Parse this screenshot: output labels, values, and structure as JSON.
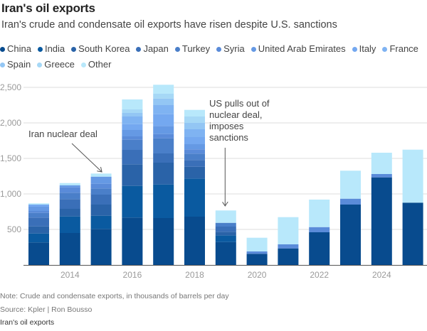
{
  "title": "Iran's oil exports",
  "subtitle": "Iran's crude and condensate oil exports have risen despite U.S. sanctions",
  "note": "Note: Crude and condensate exports, in thousands of barrels per day",
  "source": "Source: Kpler | Ron Bousso",
  "footer_title": "Iran's oil exports",
  "chart_data": {
    "type": "bar",
    "stacked": true,
    "title": "Iran's oil exports",
    "xlabel": "",
    "ylabel": "",
    "units": "thousands of barrels per day",
    "ylim": [
      0,
      2500
    ],
    "yticks": [
      500,
      1000,
      1500,
      2000,
      2500
    ],
    "ytick_labels": [
      "500",
      "1,000",
      "1,500",
      "2,000",
      "2,500"
    ],
    "grid": true,
    "legend_position": "top",
    "categories": [
      "2013",
      "2014",
      "2015",
      "2016",
      "2017",
      "2018",
      "2019",
      "2020",
      "2021",
      "2022",
      "2023",
      "2024",
      "2025"
    ],
    "xtick_labels": [
      "2014",
      "2016",
      "2018",
      "2020",
      "2022",
      "2024"
    ],
    "series": [
      {
        "name": "China",
        "color": "#084b8e",
        "values": [
          317,
          450,
          507,
          667,
          660,
          680,
          323,
          157,
          233,
          460,
          850,
          1233,
          877
        ]
      },
      {
        "name": "India",
        "color": "#0a5aa0",
        "values": [
          126,
          233,
          186,
          446,
          473,
          537,
          94,
          0,
          0,
          0,
          0,
          0,
          0
        ]
      },
      {
        "name": "South Korea",
        "color": "#2a63a8",
        "values": [
          100,
          107,
          157,
          304,
          307,
          166,
          50,
          0,
          0,
          0,
          0,
          0,
          0
        ]
      },
      {
        "name": "Japan",
        "color": "#3a6fb8",
        "values": [
          124,
          137,
          140,
          203,
          130,
          94,
          73,
          0,
          0,
          0,
          0,
          0,
          0
        ]
      },
      {
        "name": "Turkey",
        "color": "#4a7fc9",
        "values": [
          66,
          90,
          87,
          143,
          213,
          90,
          53,
          0,
          0,
          0,
          0,
          0,
          0
        ]
      },
      {
        "name": "Syria",
        "color": "#5a8bd9",
        "values": [
          27,
          76,
          66,
          47,
          60,
          60,
          0,
          33,
          57,
          73,
          83,
          47,
          0
        ]
      },
      {
        "name": "United Arab Emirates",
        "color": "#6599e4",
        "values": [
          60,
          27,
          100,
          90,
          114,
          73,
          0,
          0,
          0,
          0,
          0,
          0,
          0
        ]
      },
      {
        "name": "Italy",
        "color": "#74a8f0",
        "values": [
          30,
          0,
          0,
          83,
          166,
          100,
          0,
          0,
          0,
          0,
          0,
          0,
          0
        ]
      },
      {
        "name": "France",
        "color": "#7fb3f2",
        "values": [
          0,
          0,
          0,
          107,
          127,
          110,
          0,
          0,
          0,
          0,
          0,
          0,
          0
        ]
      },
      {
        "name": "Spain",
        "color": "#93c6f4",
        "values": [
          0,
          0,
          0,
          50,
          93,
          90,
          0,
          0,
          0,
          0,
          0,
          0,
          0
        ]
      },
      {
        "name": "Greece",
        "color": "#a6d8f6",
        "values": [
          0,
          0,
          0,
          50,
          67,
          90,
          0,
          0,
          0,
          0,
          0,
          0,
          0
        ]
      },
      {
        "name": "Other",
        "color": "#b8e8fb",
        "values": [
          17,
          33,
          44,
          140,
          127,
          93,
          174,
          193,
          383,
          387,
          394,
          300,
          746
        ]
      }
    ],
    "annotations": [
      {
        "text": "Iran nuclear deal",
        "category": "2015"
      },
      {
        "text_lines": [
          "US pulls out of",
          "nuclear deal,",
          "imposes",
          "sanctions"
        ],
        "category": "2019"
      }
    ]
  },
  "legend": {
    "rows": [
      [
        "China",
        "India",
        "South Korea",
        "Japan",
        "Turkey",
        "Syria",
        "United Arab Emirates",
        "Italy",
        "France"
      ],
      [
        "Spain",
        "Greece",
        "Other"
      ]
    ]
  }
}
